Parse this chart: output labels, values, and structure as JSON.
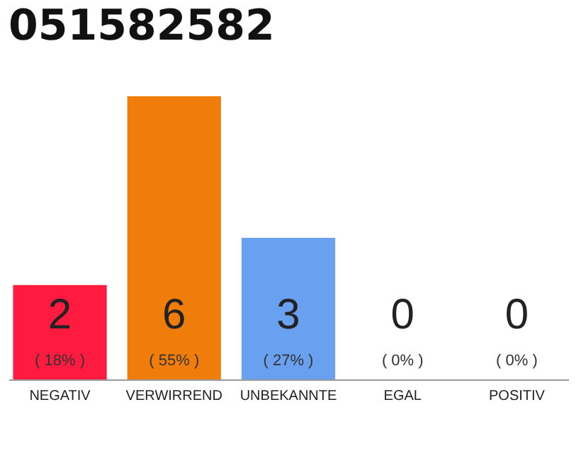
{
  "chart_data": {
    "type": "bar",
    "title": "051582582",
    "categories": [
      "NEGATIV",
      "VERWIRREND",
      "UNBEKANNTE",
      "EGAL",
      "POSITIV"
    ],
    "values": [
      2,
      6,
      3,
      0,
      0
    ],
    "colors": [
      "#ff1a40",
      "#f07d0a",
      "#6aa0f0",
      "#d0d0d0",
      "#d0d0d0"
    ],
    "value_labels": [
      "2",
      "6",
      "3",
      "0",
      "0"
    ],
    "annotations": [
      "( 18% )",
      "( 55% )",
      "( 27% )",
      "( 0% )",
      "( 0% )"
    ],
    "ylim": [
      0,
      6
    ],
    "tick_labels": "x"
  }
}
